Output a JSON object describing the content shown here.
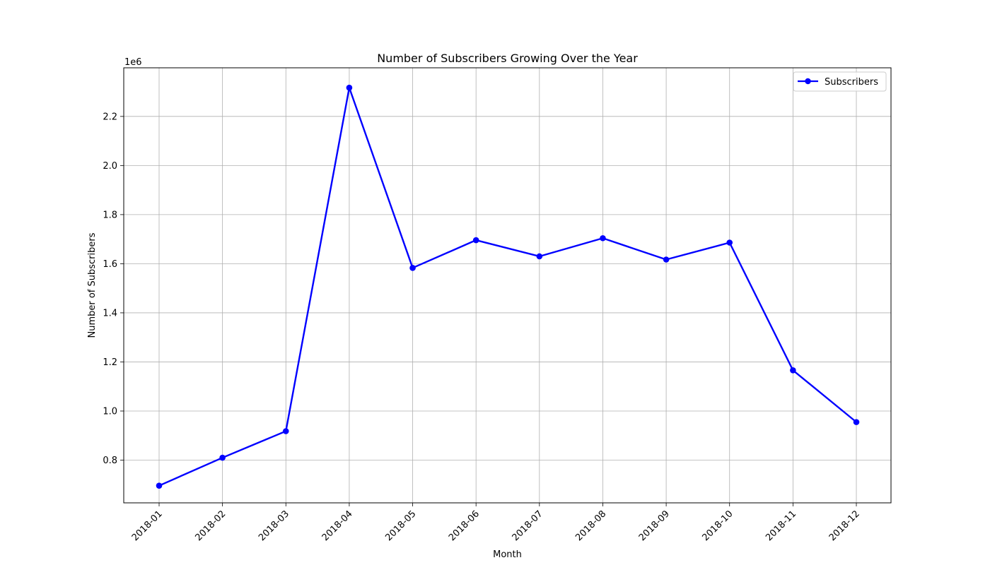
{
  "chart_data": {
    "type": "line",
    "title": "Number of Subscribers Growing Over the Year",
    "xlabel": "Month",
    "ylabel": "Number of Subscribers",
    "y_offset_label": "1e6",
    "categories": [
      "2018-01",
      "2018-02",
      "2018-03",
      "2018-04",
      "2018-05",
      "2018-06",
      "2018-07",
      "2018-08",
      "2018-09",
      "2018-10",
      "2018-11",
      "2018-12"
    ],
    "series": [
      {
        "name": "Subscribers",
        "color": "#0000ff",
        "marker": "circle",
        "values": [
          696000,
          810000,
          918000,
          2317000,
          1583000,
          1696000,
          1630000,
          1704000,
          1617000,
          1686000,
          1166000,
          955000
        ]
      }
    ],
    "ylim": [
      626000,
      2398000
    ],
    "yticks": [
      800000,
      1000000,
      1200000,
      1400000,
      1600000,
      1800000,
      2000000,
      2200000
    ],
    "ytick_labels": [
      "0.8",
      "1.0",
      "1.2",
      "1.4",
      "1.6",
      "1.8",
      "2.0",
      "2.2"
    ],
    "grid": true,
    "legend_position": "top-right",
    "x_tick_rotation": 45
  }
}
